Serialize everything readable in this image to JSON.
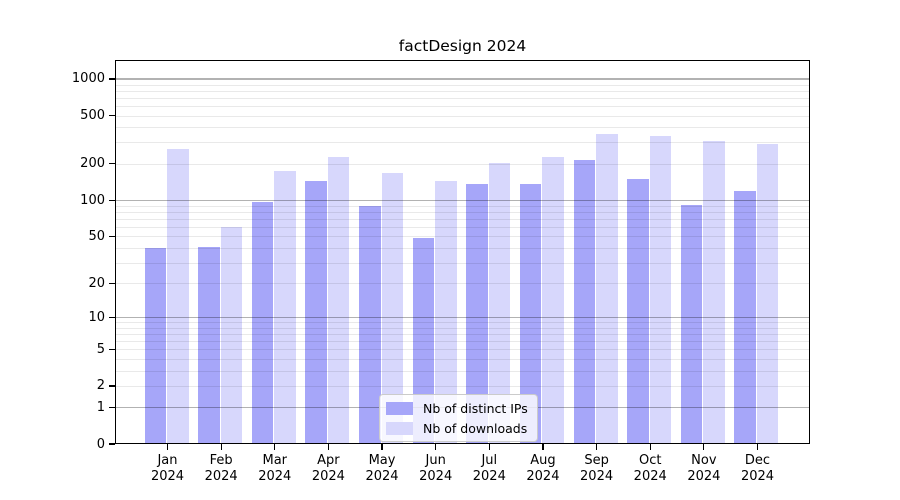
{
  "title": "factDesign 2024",
  "chart_data": {
    "type": "bar",
    "title": "factDesign 2024",
    "categories": [
      "Jan 2024",
      "Feb 2024",
      "Mar 2024",
      "Apr 2024",
      "May 2024",
      "Jun 2024",
      "Jul 2024",
      "Aug 2024",
      "Sep 2024",
      "Oct 2024",
      "Nov 2024",
      "Dec 2024"
    ],
    "series": [
      {
        "name": "Nb of distinct IPs",
        "color": "#a6a6f9",
        "values": [
          40,
          41,
          96,
          145,
          90,
          48,
          136,
          135,
          216,
          150,
          92,
          120
        ]
      },
      {
        "name": "Nb of downloads",
        "color": "#d7d7fc",
        "values": [
          265,
          60,
          175,
          228,
          168,
          145,
          202,
          228,
          355,
          338,
          310,
          290
        ]
      }
    ],
    "xlabel": "",
    "ylabel": "",
    "yscale": "log(1+x)",
    "ylim": [
      0,
      1433
    ],
    "yticks": [
      0,
      1,
      2,
      5,
      10,
      20,
      50,
      100,
      200,
      500,
      1000
    ],
    "grid": {
      "horizontal": true,
      "vertical": false,
      "major_lines_at": [
        1,
        10,
        100,
        1000
      ],
      "minor_lines": "2-9 per decade"
    },
    "legend": {
      "position": "lower center",
      "entries": [
        "Nb of distinct IPs",
        "Nb of downloads"
      ]
    },
    "axis_color": "#000000",
    "background": "#ffffff"
  }
}
